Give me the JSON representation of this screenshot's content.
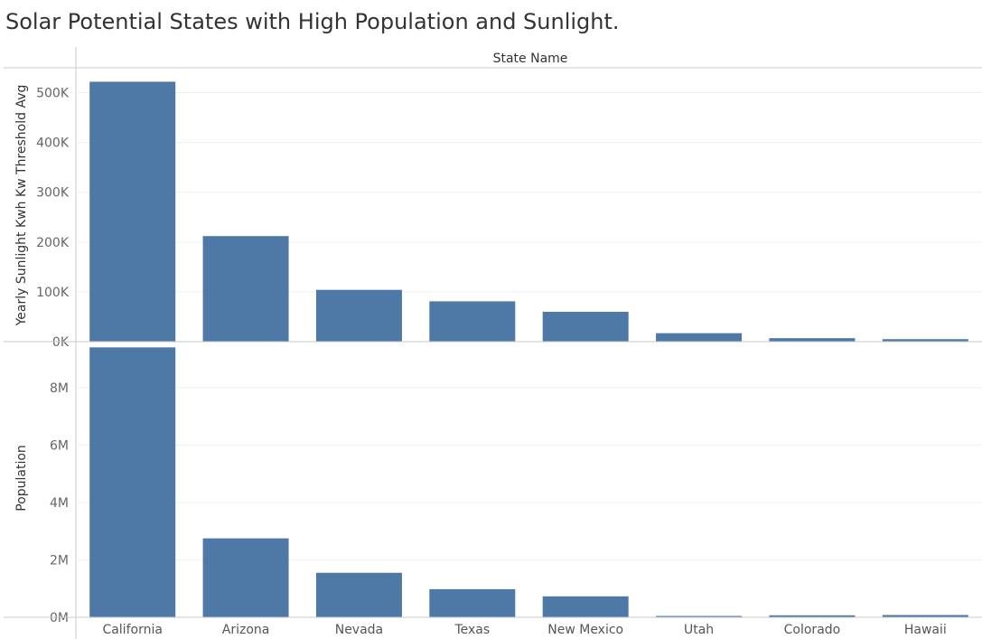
{
  "title": "Solar Potential States with High Population and Sunlight.",
  "colors": {
    "bar": "#4e79a7",
    "grid": "#f0f0f0",
    "axis": "#c8c8c8"
  },
  "chart_data": {
    "type": "bar",
    "title": "Solar Potential States with High Population and Sunlight.",
    "column_header": "State Name",
    "categories": [
      "California",
      "Arizona",
      "Nevada",
      "Texas",
      "New Mexico",
      "Utah",
      "Colorado",
      "Hawaii"
    ],
    "grid": true,
    "panels": [
      {
        "name": "Yearly Sunlight Kwh Kw Threshold Avg",
        "ylabel": "Yearly Sunlight Kwh Kw Threshold Avg",
        "ylim": [
          0,
          550000
        ],
        "yticks": [
          0,
          100000,
          200000,
          300000,
          400000,
          500000
        ],
        "ytick_labels": [
          "0K",
          "100K",
          "200K",
          "300K",
          "400K",
          "500K"
        ],
        "values": [
          522000,
          212000,
          104000,
          81000,
          60000,
          17000,
          7000,
          5000
        ]
      },
      {
        "name": "Population",
        "ylabel": "Population",
        "ylim": [
          0,
          9600000
        ],
        "yticks": [
          0,
          2000000,
          4000000,
          6000000,
          8000000
        ],
        "ytick_labels": [
          "0M",
          "2M",
          "4M",
          "6M",
          "8M"
        ],
        "values": [
          9400000,
          2750000,
          1550000,
          980000,
          730000,
          30000,
          70000,
          80000
        ]
      }
    ]
  }
}
